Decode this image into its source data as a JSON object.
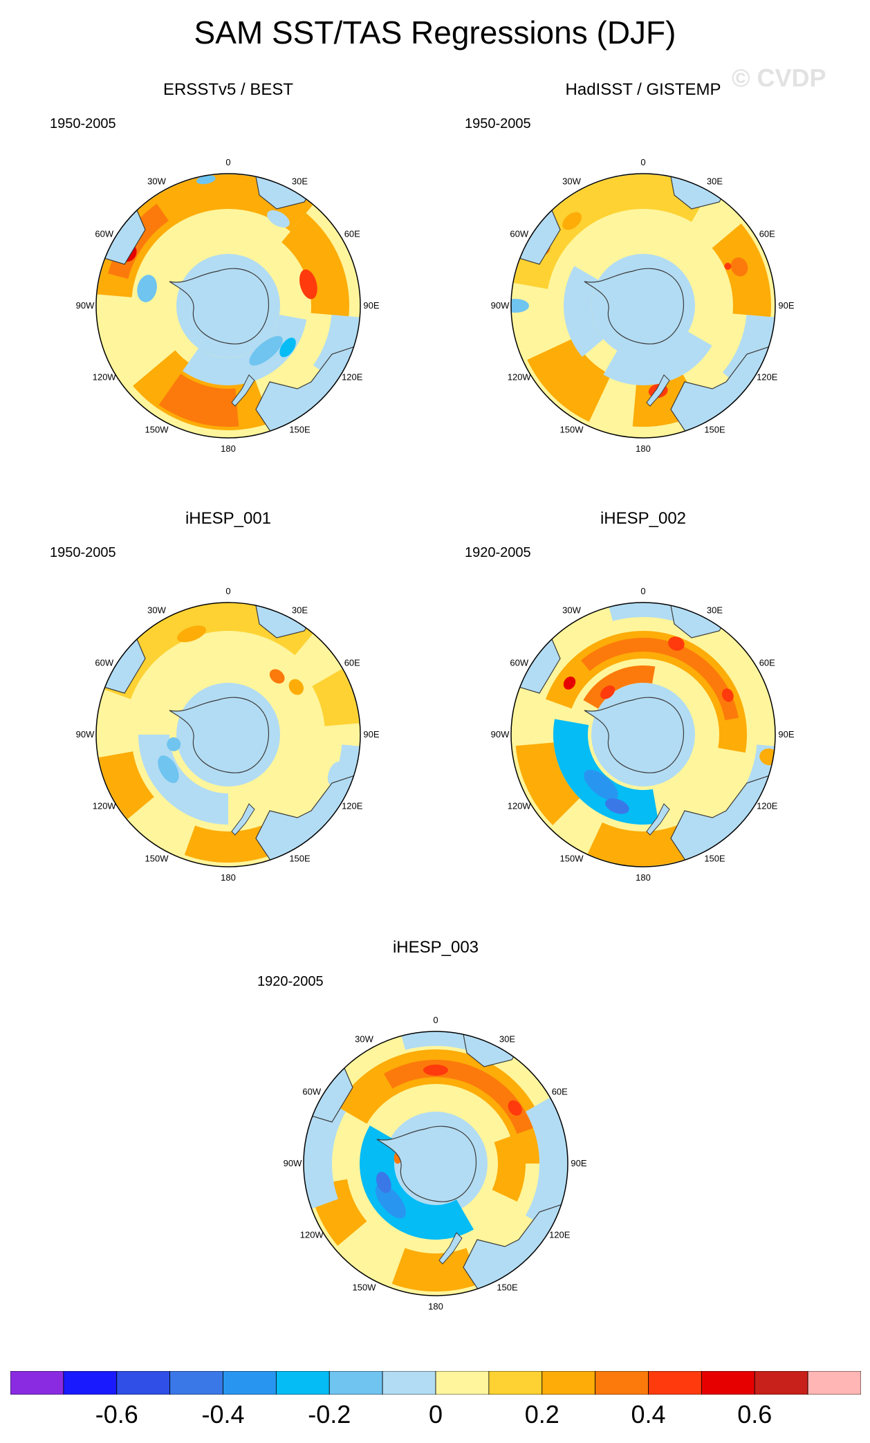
{
  "title": "SAM SST/TAS Regressions (DJF)",
  "watermark": "© CVDP",
  "lon_labels": [
    "0",
    "30E",
    "60E",
    "90E",
    "120E",
    "150E",
    "180",
    "150W",
    "120W",
    "90W",
    "60W",
    "30W"
  ],
  "panels": [
    {
      "title": "ERSSTv5 / BEST",
      "period": "1950-2005",
      "pattern": "obs1"
    },
    {
      "title": "HadISST / GISTEMP",
      "period": "1950-2005",
      "pattern": "obs2"
    },
    {
      "title": "iHESP_001",
      "period": "1950-2005",
      "pattern": "model1"
    },
    {
      "title": "iHESP_002",
      "period": "1920-2005",
      "pattern": "model2"
    },
    {
      "title": "iHESP_003",
      "period": "1920-2005",
      "pattern": "model3"
    }
  ],
  "colorbar": {
    "colors": [
      "#8a2be2",
      "#1a1aff",
      "#2f4fe6",
      "#3a78e8",
      "#2896f0",
      "#05bcf5",
      "#6fc4f0",
      "#b2dcf3",
      "#fff59c",
      "#fdd232",
      "#fdac08",
      "#fc7a0b",
      "#ff3a0c",
      "#e60000",
      "#c8201a",
      "#ffb6b4"
    ],
    "labels": [
      "-0.6",
      "-0.4",
      "-0.2",
      "0",
      "0.2",
      "0.4",
      "0.6"
    ],
    "label_positions": [
      2,
      4,
      6,
      8,
      10,
      12,
      14
    ]
  },
  "colors": {
    "ocean_neutral": "#fff59c",
    "land_light_blue": "#b2dcf3",
    "coast": "#3a3a3a"
  }
}
